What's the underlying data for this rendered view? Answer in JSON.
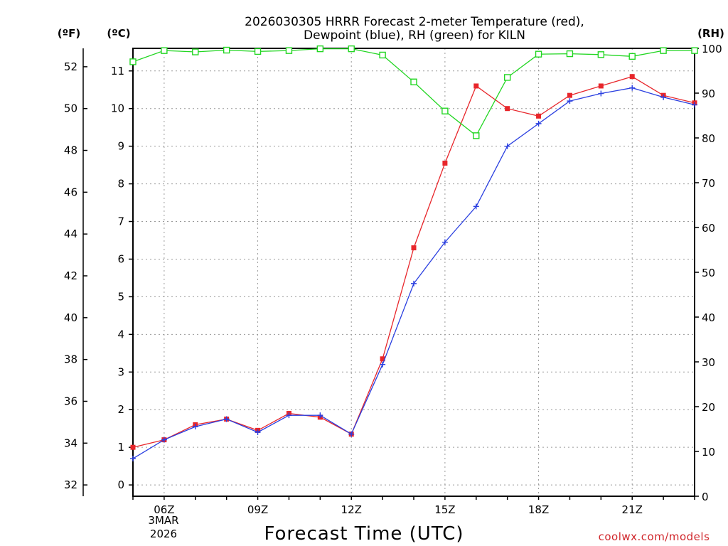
{
  "chart_data": {
    "type": "line",
    "title_line1": "2026030305 HRRR Forecast 2-meter Temperature (red),",
    "title_line2": "Dewpoint (blue), RH (green) for KILN",
    "xlabel": "Forecast Time (UTC)",
    "date_lines": [
      "3MAR",
      "2026"
    ],
    "credit": "coolwx.com/models",
    "units": {
      "fahrenheit": "(ºF)",
      "celsius": "(ºC)",
      "rh": "(RH)"
    },
    "x_hours": [
      5,
      6,
      7,
      8,
      9,
      10,
      11,
      12,
      13,
      14,
      15,
      16,
      17,
      18,
      19,
      20,
      21,
      22,
      23
    ],
    "xlim": [
      5,
      23
    ],
    "x_ticks": [
      {
        "hour": 6,
        "label": "06Z"
      },
      {
        "hour": 9,
        "label": "09Z"
      },
      {
        "hour": 12,
        "label": "12Z"
      },
      {
        "hour": 15,
        "label": "15Z"
      },
      {
        "hour": 18,
        "label": "18Z"
      },
      {
        "hour": 21,
        "label": "21Z"
      }
    ],
    "celsius_axis": {
      "range": [
        -0.3,
        11.6
      ],
      "ticks": [
        0,
        1,
        2,
        3,
        4,
        5,
        6,
        7,
        8,
        9,
        10,
        11
      ]
    },
    "fahrenheit_axis": {
      "ticks": [
        32,
        34,
        36,
        38,
        40,
        42,
        44,
        46,
        48,
        50,
        52
      ]
    },
    "rh_axis": {
      "range": [
        0,
        100
      ],
      "ticks": [
        0,
        10,
        20,
        30,
        40,
        50,
        60,
        70,
        80,
        90,
        100
      ]
    },
    "series": [
      {
        "name": "Temperature",
        "unit": "C",
        "color": "#e8262b",
        "marker": "filled-square",
        "values": [
          1.0,
          1.2,
          1.6,
          1.75,
          1.45,
          1.9,
          1.8,
          1.35,
          3.35,
          6.3,
          8.55,
          10.6,
          10.0,
          9.8,
          10.35,
          10.6,
          10.85,
          10.35,
          10.15
        ]
      },
      {
        "name": "Dewpoint",
        "unit": "C",
        "color": "#2a3fe0",
        "marker": "plus",
        "values": [
          0.7,
          1.2,
          1.55,
          1.75,
          1.4,
          1.85,
          1.85,
          1.35,
          3.2,
          5.35,
          6.45,
          7.4,
          9.0,
          9.6,
          10.2,
          10.4,
          10.55,
          10.3,
          10.1
        ]
      },
      {
        "name": "RH",
        "unit": "%",
        "color": "#22d622",
        "marker": "open-square",
        "values": [
          97,
          99.5,
          99.2,
          99.6,
          99.3,
          99.5,
          99.9,
          99.9,
          98.5,
          92.5,
          86,
          80.5,
          93.5,
          98.7,
          98.8,
          98.6,
          98.2,
          99.5,
          99.5
        ]
      }
    ]
  }
}
